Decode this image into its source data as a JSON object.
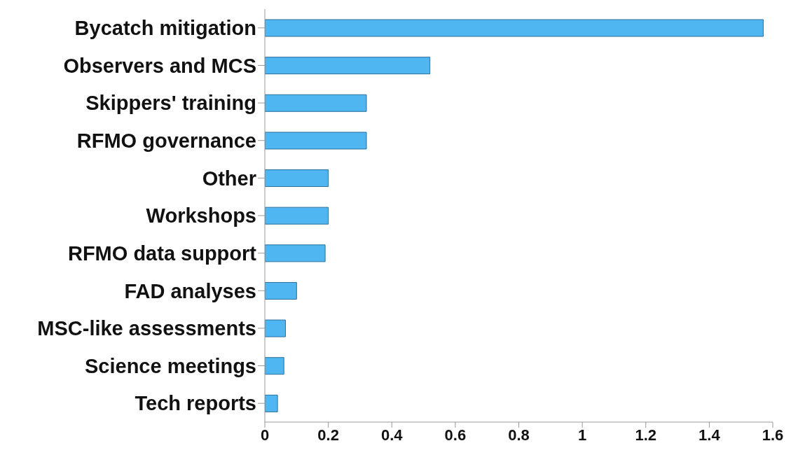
{
  "chart_data": {
    "type": "bar",
    "orientation": "horizontal",
    "categories": [
      "Bycatch mitigation",
      "Observers and MCS",
      "Skippers' training",
      "RFMO governance",
      "Other",
      "Workshops",
      "RFMO data support",
      "FAD analyses",
      "MSC-like assessments",
      "Science meetings",
      "Tech reports"
    ],
    "values": [
      1.57,
      0.52,
      0.32,
      0.32,
      0.2,
      0.2,
      0.19,
      0.1,
      0.065,
      0.06,
      0.04
    ],
    "color": "#4fb6f2",
    "xlim": [
      0,
      1.6
    ],
    "xticks": [
      0,
      0.2,
      0.4,
      0.6,
      0.8,
      1,
      1.2,
      1.4,
      1.6
    ],
    "grid": false,
    "legend": false
  }
}
